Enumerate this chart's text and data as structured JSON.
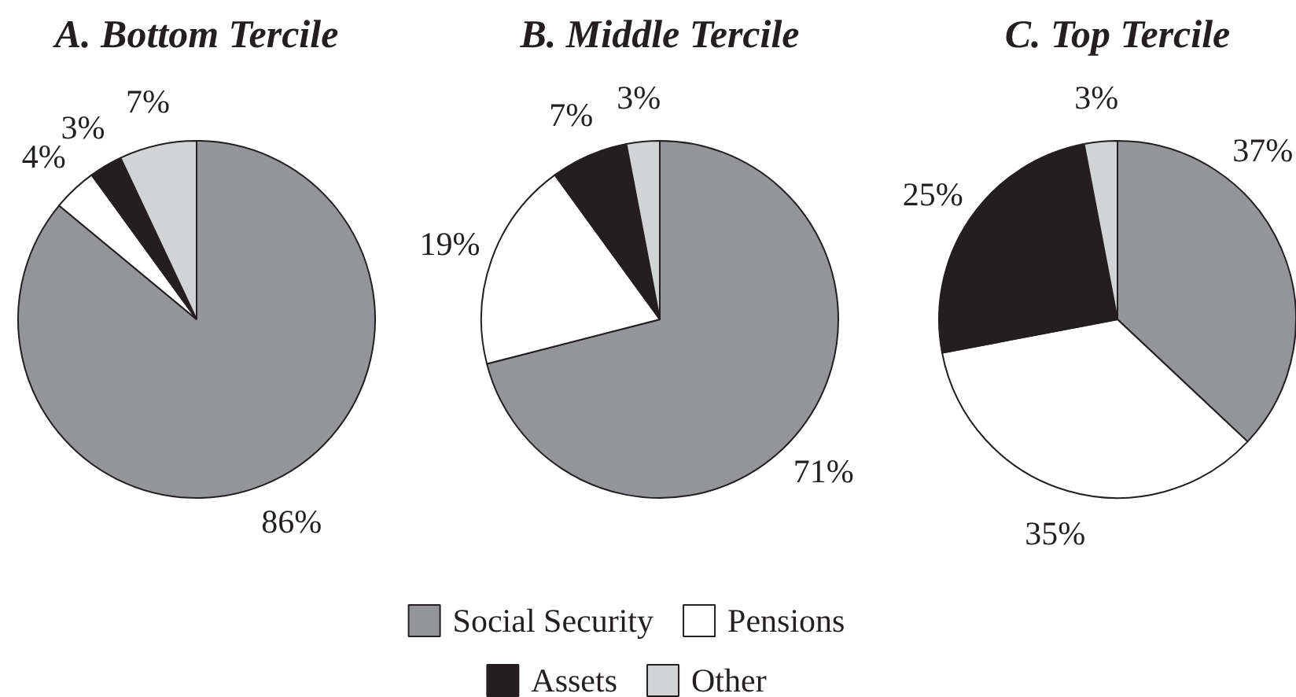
{
  "chart_data": [
    {
      "type": "pie",
      "title": "A. Bottom Tercile",
      "values": [
        86,
        4,
        3,
        7
      ],
      "colors": [
        "#939598",
        "#ffffff",
        "#231f20",
        "#d1d3d4"
      ],
      "value_labels": [
        "86%",
        "4%",
        "3%",
        "7%"
      ]
    },
    {
      "type": "pie",
      "title": "B. Middle Tercile",
      "categories": [
        "Social Security",
        "Pensions",
        "Assets",
        "Other"
      ],
      "values": [
        71,
        19,
        7,
        3
      ],
      "colors": [
        "#939598",
        "#ffffff",
        "#231f20",
        "#d1d3d4"
      ],
      "value_labels": [
        "71%",
        "19%",
        "7%",
        "3%"
      ],
      "legend": "bottom"
    },
    {
      "type": "pie",
      "title": "C. Top Tercile",
      "values": [
        37,
        35,
        25,
        3
      ],
      "colors": [
        "#939598",
        "#ffffff",
        "#231f20",
        "#d1d3d4"
      ],
      "value_labels": [
        "37%",
        "35%",
        "25%",
        "3%"
      ]
    }
  ]
}
